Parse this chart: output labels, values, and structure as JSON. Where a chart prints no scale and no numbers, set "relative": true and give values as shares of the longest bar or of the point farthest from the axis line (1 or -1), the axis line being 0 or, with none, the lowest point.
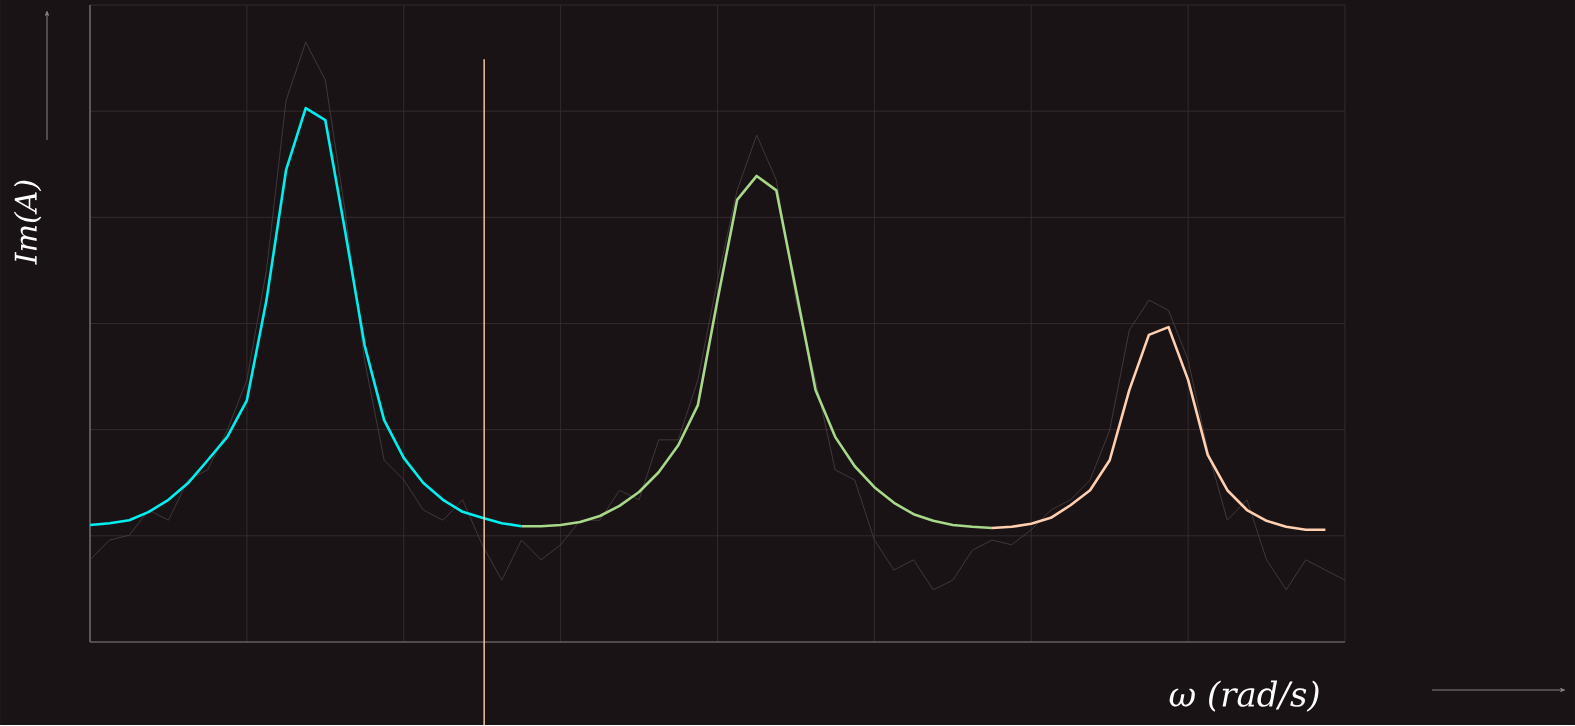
{
  "chart_data": {
    "type": "line",
    "relative": true,
    "xlabel": "ω (rad/s)",
    "ylabel": "Im(A)",
    "grid": true,
    "line_style": "solid",
    "categories": [
      null,
      null,
      null,
      null,
      null,
      null,
      null,
      null,
      null,
      null,
      null,
      null,
      null,
      null,
      null,
      null,
      null,
      null,
      null,
      null,
      null,
      null,
      null,
      null,
      null,
      null,
      null,
      null,
      null,
      null,
      null,
      null,
      null,
      null,
      null,
      null,
      null,
      null,
      null,
      null,
      null,
      null,
      null,
      null,
      null,
      null,
      null,
      null,
      null,
      null,
      null,
      null,
      null,
      null,
      null,
      null,
      null,
      null,
      null,
      null,
      null,
      null,
      null,
      null,
      null
    ],
    "series": [
      {
        "color": "#4a4044",
        "values": [
          0.137,
          0.17,
          0.178,
          0.22,
          0.203,
          0.27,
          0.287,
          0.353,
          0.437,
          0.62,
          0.903,
          1.0,
          0.937,
          0.72,
          0.47,
          0.303,
          0.27,
          0.22,
          0.203,
          0.237,
          0.162,
          0.103,
          0.17,
          0.137,
          0.162,
          0.203,
          0.203,
          0.253,
          0.237,
          0.337,
          0.337,
          0.437,
          0.603,
          0.753,
          0.845,
          0.77,
          0.57,
          0.437,
          0.287,
          0.27,
          0.17,
          0.12,
          0.137,
          0.087,
          0.103,
          0.153,
          0.17,
          0.162,
          0.187,
          0.22,
          0.237,
          0.27,
          0.353,
          0.52,
          0.57,
          0.553,
          0.47,
          0.32,
          0.203,
          0.237,
          0.137,
          0.087,
          0.137,
          0.12,
          0.103
        ]
      },
      {
        "color": "#00f0f0",
        "values": [
          0.195,
          0.198,
          0.203,
          0.217,
          0.237,
          0.265,
          0.303,
          0.342,
          0.403,
          0.57,
          0.787,
          0.89,
          0.87,
          0.687,
          0.495,
          0.37,
          0.307,
          0.265,
          0.237,
          0.217,
          0.207,
          0.198,
          0.193,
          null,
          null,
          null,
          null,
          null,
          null,
          null,
          null,
          null,
          null,
          null,
          null,
          null,
          null,
          null,
          null,
          null,
          null,
          null,
          null,
          null,
          null,
          null,
          null,
          null,
          null,
          null,
          null,
          null,
          null,
          null,
          null,
          null,
          null,
          null,
          null,
          null,
          null,
          null,
          null,
          null,
          null
        ]
      },
      {
        "color": "#a8d88a",
        "values": [
          null,
          null,
          null,
          null,
          null,
          null,
          null,
          null,
          null,
          null,
          null,
          null,
          null,
          null,
          null,
          null,
          null,
          null,
          null,
          null,
          null,
          null,
          0.193,
          0.193,
          0.195,
          0.2,
          0.21,
          0.227,
          0.25,
          0.283,
          0.328,
          0.395,
          0.57,
          0.737,
          0.777,
          0.753,
          0.587,
          0.42,
          0.342,
          0.293,
          0.258,
          0.232,
          0.213,
          0.202,
          0.195,
          0.192,
          0.19,
          null,
          null,
          null,
          null,
          null,
          null,
          null,
          null,
          null,
          null,
          null,
          null,
          null,
          null,
          null,
          null,
          null,
          null
        ]
      },
      {
        "color": "#ffcfb0",
        "values": [
          null,
          null,
          null,
          null,
          null,
          null,
          null,
          null,
          null,
          null,
          null,
          null,
          null,
          null,
          null,
          null,
          null,
          null,
          null,
          null,
          null,
          null,
          null,
          null,
          null,
          null,
          null,
          null,
          null,
          null,
          null,
          null,
          null,
          null,
          null,
          null,
          null,
          null,
          null,
          null,
          null,
          null,
          null,
          null,
          null,
          null,
          0.19,
          0.192,
          0.197,
          0.207,
          0.228,
          0.253,
          0.303,
          0.42,
          0.512,
          0.525,
          0.437,
          0.312,
          0.253,
          0.22,
          0.202,
          0.192,
          0.187,
          0.187,
          null
        ]
      }
    ]
  }
}
